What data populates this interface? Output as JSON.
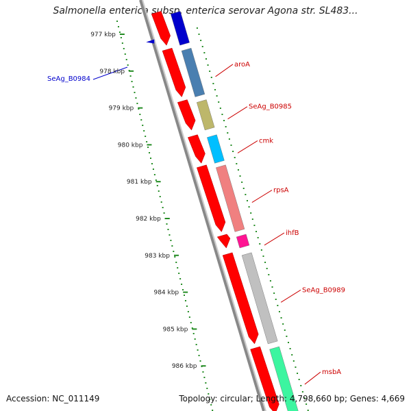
{
  "title": "Salmonella enterica subsp. enterica serovar Agona str. SL483...",
  "footer": {
    "accession": "Accession: NC_011149",
    "summary": "Topology: circular; Length: 4,798,660 bp; Genes: 4,669"
  },
  "ticks": [
    {
      "label": "977 kbp",
      "value": 977
    },
    {
      "label": "978 kbp",
      "value": 978
    },
    {
      "label": "979 kbp",
      "value": 979
    },
    {
      "label": "980 kbp",
      "value": 980
    },
    {
      "label": "981 kbp",
      "value": 981
    },
    {
      "label": "982 kbp",
      "value": 982
    },
    {
      "label": "983 kbp",
      "value": 983
    },
    {
      "label": "984 kbp",
      "value": 984
    },
    {
      "label": "985 kbp",
      "value": 985
    },
    {
      "label": "986 kbp",
      "value": 986
    }
  ],
  "colors": {
    "cds": "#ff0000",
    "label_forward": "#cc0000",
    "label_reverse": "#0000cc",
    "backbone": "#888888",
    "ticks": "#228B22",
    "aroA": "#4a7fb0",
    "SeAg_B0985": "#bdb76b",
    "cmk": "#00bfff",
    "rpsA": "#f08080",
    "ihfB": "#ff1493",
    "SeAg_B0989": "#c0c0c0",
    "msbA": "#3cf5a0",
    "prev_gene": "#0000cc"
  },
  "genes": [
    {
      "name": "",
      "start": 976.45,
      "end": 977.3,
      "color": "#0000cc",
      "labeled": false
    },
    {
      "name": "aroA",
      "start": 977.45,
      "end": 978.7,
      "color": "#4a7fb0",
      "labeled": true
    },
    {
      "name": "SeAg_B0985",
      "start": 978.85,
      "end": 979.6,
      "color": "#bdb76b",
      "labeled": true
    },
    {
      "name": "cmk",
      "start": 979.8,
      "end": 980.5,
      "color": "#00bfff",
      "labeled": true
    },
    {
      "name": "rpsA",
      "start": 980.62,
      "end": 982.36,
      "color": "#f08080",
      "labeled": true
    },
    {
      "name": "ihfB",
      "start": 982.5,
      "end": 982.8,
      "color": "#ff1493",
      "labeled": true
    },
    {
      "name": "SeAg_B0989",
      "start": 983.0,
      "end": 985.4,
      "color": "#c0c0c0",
      "labeled": true
    },
    {
      "name": "msbA",
      "start": 985.55,
      "end": 987.3,
      "color": "#3cf5a0",
      "labeled": true
    }
  ],
  "label_ticks": {
    "aroA": "aroA",
    "SeAg_B0985": "SeAg_B0985",
    "cmk": "cmk",
    "rpsA": "rpsA",
    "ihfB": "ihfB",
    "SeAg_B0989": "SeAg_B0989",
    "msbA": "msbA"
  },
  "reverse_features": [
    {
      "name": "SeAg_B0984",
      "label": "SeAg_B0984",
      "position": 977.4
    }
  ]
}
